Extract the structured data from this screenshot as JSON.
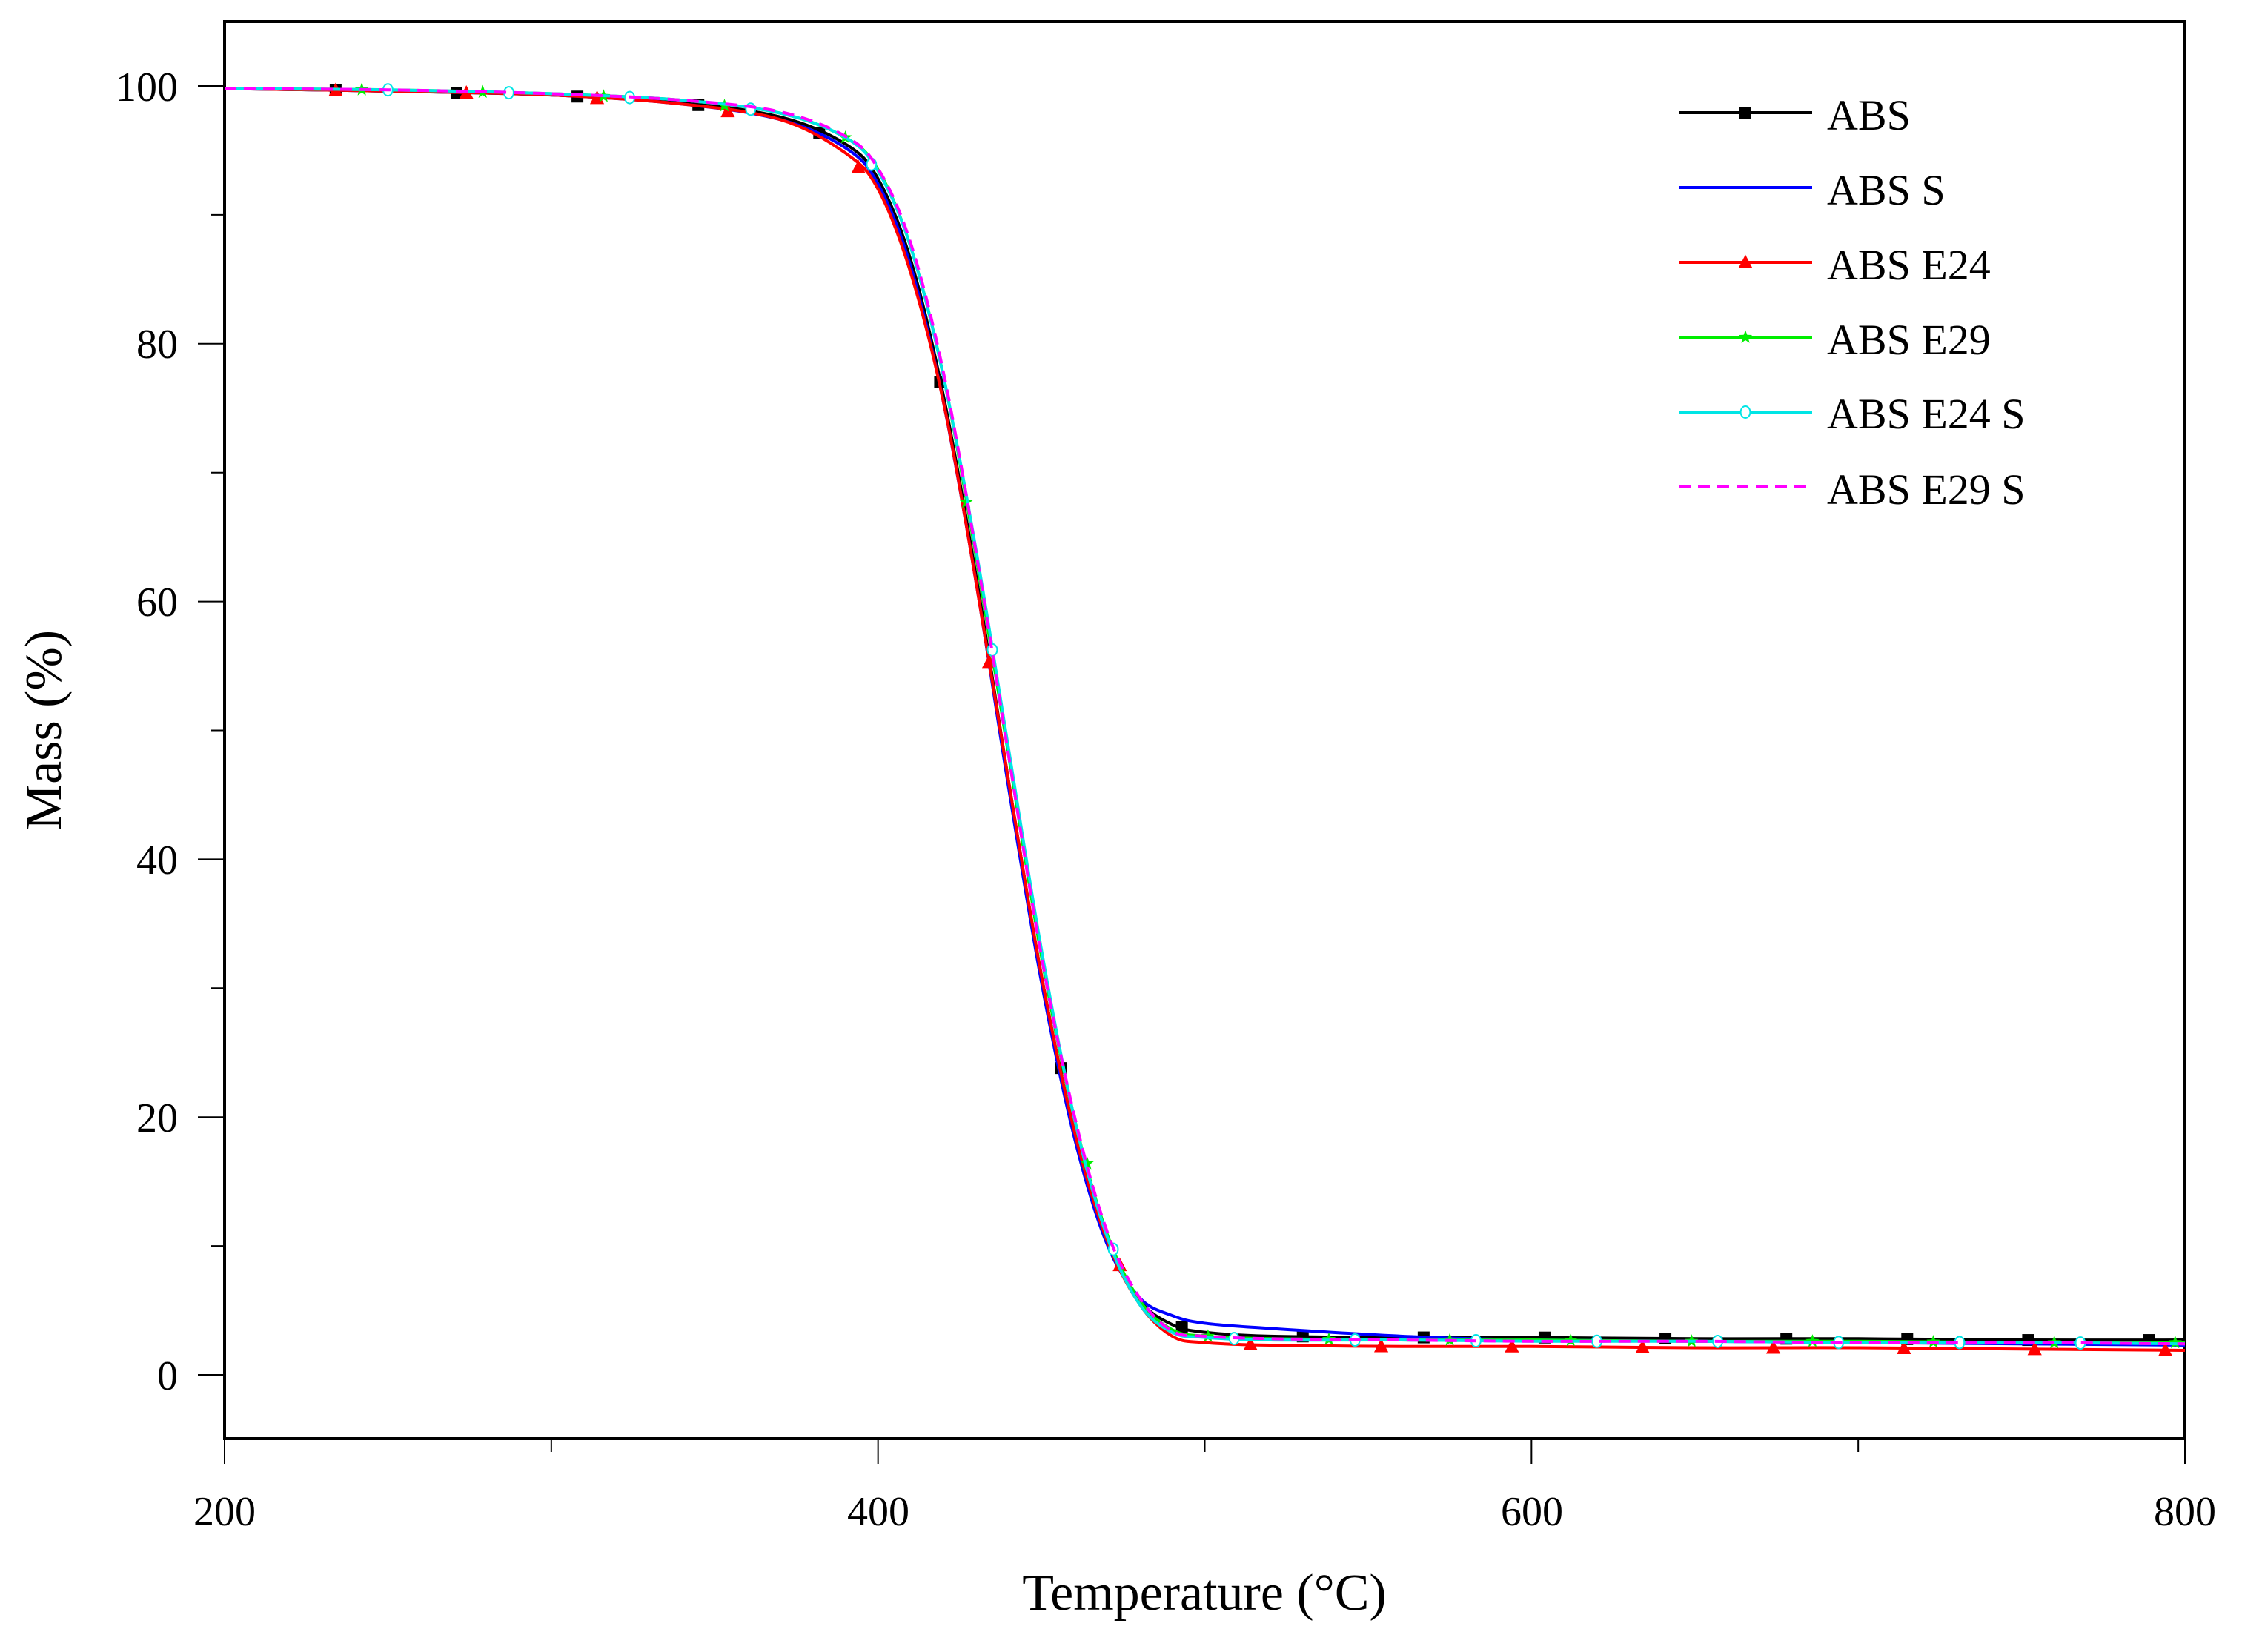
{
  "chart_data": {
    "type": "line",
    "title": "",
    "xlabel": "Temperature (°C)",
    "ylabel": "Mass (%)",
    "xlim": [
      200,
      800
    ],
    "ylim": [
      -5,
      105
    ],
    "xticks": [
      200,
      400,
      600,
      800
    ],
    "xticks_minor": [
      300,
      500,
      700
    ],
    "yticks": [
      0,
      20,
      40,
      60,
      80,
      100
    ],
    "yticks_minor": [
      10,
      30,
      50,
      70,
      90
    ],
    "grid": false,
    "legend_position": "upper right",
    "x": [
      200,
      250,
      300,
      340,
      370,
      390,
      400,
      410,
      420,
      430,
      440,
      450,
      460,
      470,
      480,
      490,
      500,
      520,
      560,
      600,
      650,
      700,
      750,
      800
    ],
    "series": [
      {
        "name": "ABS",
        "color": "#000000",
        "marker": "square",
        "dash": "solid",
        "values": [
          99.8,
          99.6,
          99.3,
          98.7,
          97.6,
          95.5,
          92.8,
          86.5,
          76.0,
          62.0,
          46.0,
          31.0,
          19.0,
          10.5,
          5.8,
          3.9,
          3.3,
          3.0,
          2.9,
          2.9,
          2.8,
          2.8,
          2.7,
          2.7
        ]
      },
      {
        "name": "ABS S",
        "color": "#0000ff",
        "marker": "none",
        "dash": "solid",
        "values": [
          99.8,
          99.6,
          99.3,
          98.6,
          97.4,
          95.2,
          92.4,
          86.0,
          75.5,
          61.5,
          45.5,
          30.5,
          18.5,
          10.2,
          6.0,
          4.6,
          4.0,
          3.6,
          3.0,
          2.7,
          2.6,
          2.5,
          2.4,
          2.3
        ]
      },
      {
        "name": "ABS E24",
        "color": "#ff0000",
        "marker": "triangle",
        "dash": "solid",
        "values": [
          99.8,
          99.6,
          99.3,
          98.6,
          97.4,
          94.8,
          92.0,
          85.5,
          75.5,
          61.5,
          46.0,
          31.0,
          19.0,
          10.5,
          5.5,
          3.0,
          2.5,
          2.3,
          2.2,
          2.2,
          2.1,
          2.1,
          2.0,
          1.9
        ]
      },
      {
        "name": "ABS E29",
        "color": "#00ee00",
        "marker": "star",
        "dash": "solid",
        "values": [
          99.8,
          99.7,
          99.4,
          98.9,
          97.9,
          96.0,
          93.5,
          87.5,
          77.5,
          63.5,
          48.0,
          32.5,
          20.0,
          11.0,
          5.8,
          3.5,
          3.0,
          2.8,
          2.7,
          2.7,
          2.6,
          2.6,
          2.5,
          2.5
        ]
      },
      {
        "name": "ABS E24 S",
        "color": "#00e5e5",
        "marker": "circle",
        "dash": "solid",
        "values": [
          99.8,
          99.7,
          99.4,
          98.9,
          97.9,
          96.0,
          93.4,
          87.5,
          77.5,
          64.0,
          48.5,
          33.0,
          20.0,
          10.8,
          5.5,
          3.3,
          2.9,
          2.7,
          2.7,
          2.6,
          2.6,
          2.5,
          2.5,
          2.4
        ]
      },
      {
        "name": "ABS E29 S",
        "color": "#ff00ff",
        "marker": "none",
        "dash": "dashed",
        "values": [
          99.8,
          99.7,
          99.4,
          98.9,
          98.0,
          96.1,
          93.6,
          87.8,
          77.8,
          63.8,
          48.0,
          32.5,
          20.2,
          11.2,
          6.0,
          3.4,
          3.0,
          2.8,
          2.7,
          2.6,
          2.6,
          2.5,
          2.5,
          2.4
        ]
      }
    ]
  },
  "axes": {
    "x_title": "Temperature (°C)",
    "y_title": "Mass (%)",
    "x_tick_labels": [
      "200",
      "400",
      "600",
      "800"
    ],
    "y_tick_labels": [
      "0",
      "20",
      "40",
      "60",
      "80",
      "100"
    ]
  },
  "legend": {
    "items": [
      {
        "label": "ABS",
        "color": "#000000",
        "marker": "square",
        "dash": "solid"
      },
      {
        "label": "ABS S",
        "color": "#0000ff",
        "marker": "none",
        "dash": "solid"
      },
      {
        "label": "ABS E24",
        "color": "#ff0000",
        "marker": "triangle",
        "dash": "solid"
      },
      {
        "label": "ABS E29",
        "color": "#00ee00",
        "marker": "star",
        "dash": "solid"
      },
      {
        "label": "ABS E24 S",
        "color": "#00e5e5",
        "marker": "circle",
        "dash": "solid"
      },
      {
        "label": "ABS E29 S",
        "color": "#ff00ff",
        "marker": "none",
        "dash": "dashed"
      }
    ]
  }
}
